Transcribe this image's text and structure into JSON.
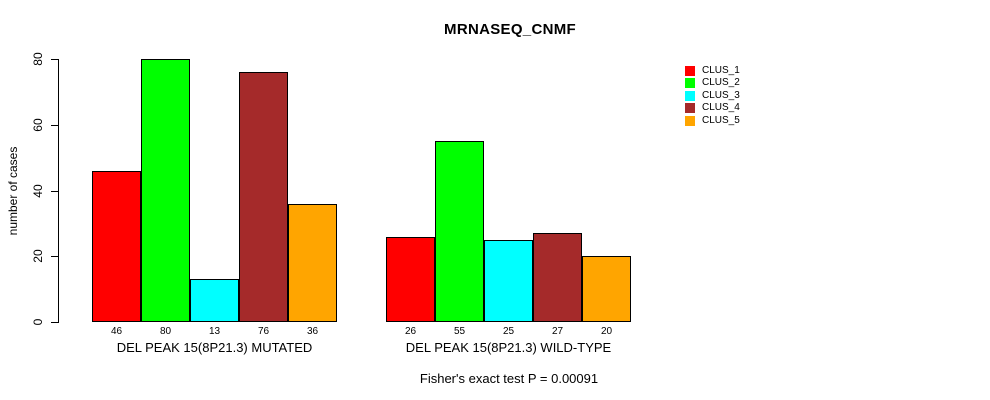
{
  "chart_data": {
    "type": "bar",
    "title": "MRNASEQ_CNMF",
    "ylabel": "number of cases",
    "xlabel": "",
    "ylim": [
      0,
      80
    ],
    "yticks": [
      0,
      20,
      40,
      60,
      80
    ],
    "grid": false,
    "legend_position": "right",
    "series": [
      {
        "name": "CLUS_1",
        "color": "#FF0000"
      },
      {
        "name": "CLUS_2",
        "color": "#00FF00"
      },
      {
        "name": "CLUS_3",
        "color": "#00FFFF"
      },
      {
        "name": "CLUS_4",
        "color": "#A52A2A"
      },
      {
        "name": "CLUS_5",
        "color": "#FFA500"
      }
    ],
    "groups": [
      {
        "label": "DEL PEAK 15(8P21.3) MUTATED",
        "values": [
          46,
          80,
          13,
          76,
          36
        ]
      },
      {
        "label": "DEL PEAK 15(8P21.3) WILD-TYPE",
        "values": [
          26,
          55,
          25,
          27,
          20
        ]
      }
    ],
    "bar_value_labels_shown": true,
    "footnote": "Fisher's exact test P = 0.00091",
    "colors": {
      "background": "#FFFFFF",
      "axis": "#000000",
      "text": "#000000"
    }
  }
}
